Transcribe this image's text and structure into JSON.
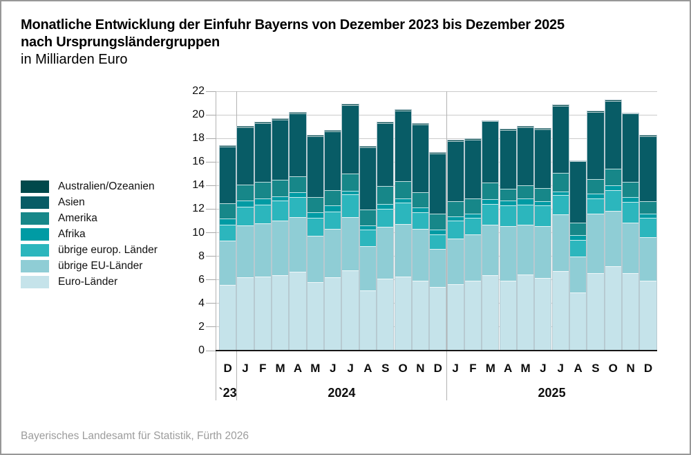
{
  "title": {
    "line1": "Monatliche Entwicklung der Einfuhr Bayerns von Dezember 2023 bis Dezember 2025",
    "line2": "nach Ursprungsländergruppen",
    "subtitle": "in Milliarden Euro"
  },
  "source": "Bayerisches Landesamt für Statistik, Fürth 2026",
  "style_colors": {
    "grid": "#cbcbcb",
    "year_separator": "#b3b3b3",
    "axis_line": "#161616",
    "bar_outline": "#b7cad1",
    "footer_text": "#9c9c9c",
    "frame": "#979797"
  },
  "chart_data": {
    "type": "bar",
    "stacked": true,
    "title": "Monatliche Entwicklung der Einfuhr Bayerns von Dezember 2023 bis Dezember 2025 nach Ursprungsländergruppen",
    "ylabel": "in Milliarden Euro",
    "ylim": [
      0,
      22
    ],
    "ytick_step": 2,
    "grid": true,
    "legend_position": "left",
    "x": [
      "D",
      "J",
      "F",
      "M",
      "A",
      "M",
      "J",
      "J",
      "A",
      "S",
      "O",
      "N",
      "D",
      "J",
      "F",
      "M",
      "A",
      "M",
      "J",
      "J",
      "A",
      "S",
      "O",
      "N",
      "D"
    ],
    "year_groups": [
      {
        "label": "`23",
        "months": 1
      },
      {
        "label": "2024",
        "months": 12
      },
      {
        "label": "2025",
        "months": 12
      }
    ],
    "series": [
      {
        "key": "australien_ozeanien",
        "name": "Australien/Ozeanien",
        "color": "#00494b",
        "values": [
          0.05,
          0.05,
          0.05,
          0.05,
          0.05,
          0.05,
          0.05,
          0.05,
          0.05,
          0.05,
          0.05,
          0.05,
          0.05,
          0.05,
          0.05,
          0.05,
          0.05,
          0.05,
          0.05,
          0.05,
          0.05,
          0.05,
          0.05,
          0.05,
          0.05
        ]
      },
      {
        "key": "asien",
        "name": "Asien",
        "color": "#085c66",
        "values": [
          4.8,
          4.85,
          5.0,
          5.1,
          5.35,
          5.15,
          5.0,
          5.85,
          5.3,
          5.35,
          6.0,
          5.75,
          5.1,
          5.1,
          5.0,
          5.2,
          5.0,
          4.95,
          5.0,
          5.7,
          5.2,
          5.7,
          5.75,
          5.8,
          5.5
        ]
      },
      {
        "key": "amerika",
        "name": "Amerika",
        "color": "#178789",
        "values": [
          1.3,
          1.4,
          1.4,
          1.4,
          1.35,
          1.3,
          1.3,
          1.45,
          1.35,
          1.5,
          1.45,
          1.3,
          1.35,
          1.3,
          1.3,
          1.4,
          1.0,
          1.1,
          1.1,
          1.55,
          1.05,
          1.25,
          1.45,
          1.3,
          1.1
        ]
      },
      {
        "key": "afrika",
        "name": "Afrika",
        "color": "#009ba4",
        "values": [
          0.5,
          0.5,
          0.5,
          0.4,
          0.4,
          0.5,
          0.5,
          0.3,
          0.35,
          0.4,
          0.35,
          0.4,
          0.4,
          0.35,
          0.35,
          0.4,
          0.4,
          0.5,
          0.4,
          0.3,
          0.4,
          0.4,
          0.4,
          0.4,
          0.35
        ]
      },
      {
        "key": "uebrige_europ_laender",
        "name": "übrige europ. Länder",
        "color": "#2cb6bd",
        "values": [
          1.4,
          1.6,
          1.6,
          1.65,
          1.75,
          1.5,
          1.45,
          1.95,
          1.4,
          1.55,
          1.8,
          1.45,
          1.25,
          1.55,
          1.4,
          1.75,
          1.75,
          1.75,
          1.75,
          1.65,
          1.4,
          1.3,
          1.75,
          1.75,
          1.65
        ]
      },
      {
        "key": "uebrige_eu_laender",
        "name": "übrige EU-Länder",
        "color": "#8fcdd5",
        "values": [
          3.7,
          4.4,
          4.5,
          4.65,
          4.6,
          3.95,
          4.15,
          4.5,
          3.75,
          4.4,
          4.45,
          4.4,
          3.2,
          3.9,
          3.95,
          4.3,
          4.6,
          4.2,
          4.4,
          4.8,
          3.05,
          5.05,
          4.7,
          4.3,
          3.7
        ]
      },
      {
        "key": "euro_laender",
        "name": "Euro-Länder",
        "color": "#c5e3ea",
        "values": [
          5.6,
          6.2,
          6.3,
          6.4,
          6.7,
          5.8,
          6.2,
          6.8,
          5.1,
          6.1,
          6.3,
          5.9,
          5.4,
          5.6,
          5.9,
          6.4,
          5.95,
          6.45,
          6.15,
          6.75,
          4.95,
          6.55,
          7.15,
          6.55,
          5.9
        ]
      }
    ]
  }
}
